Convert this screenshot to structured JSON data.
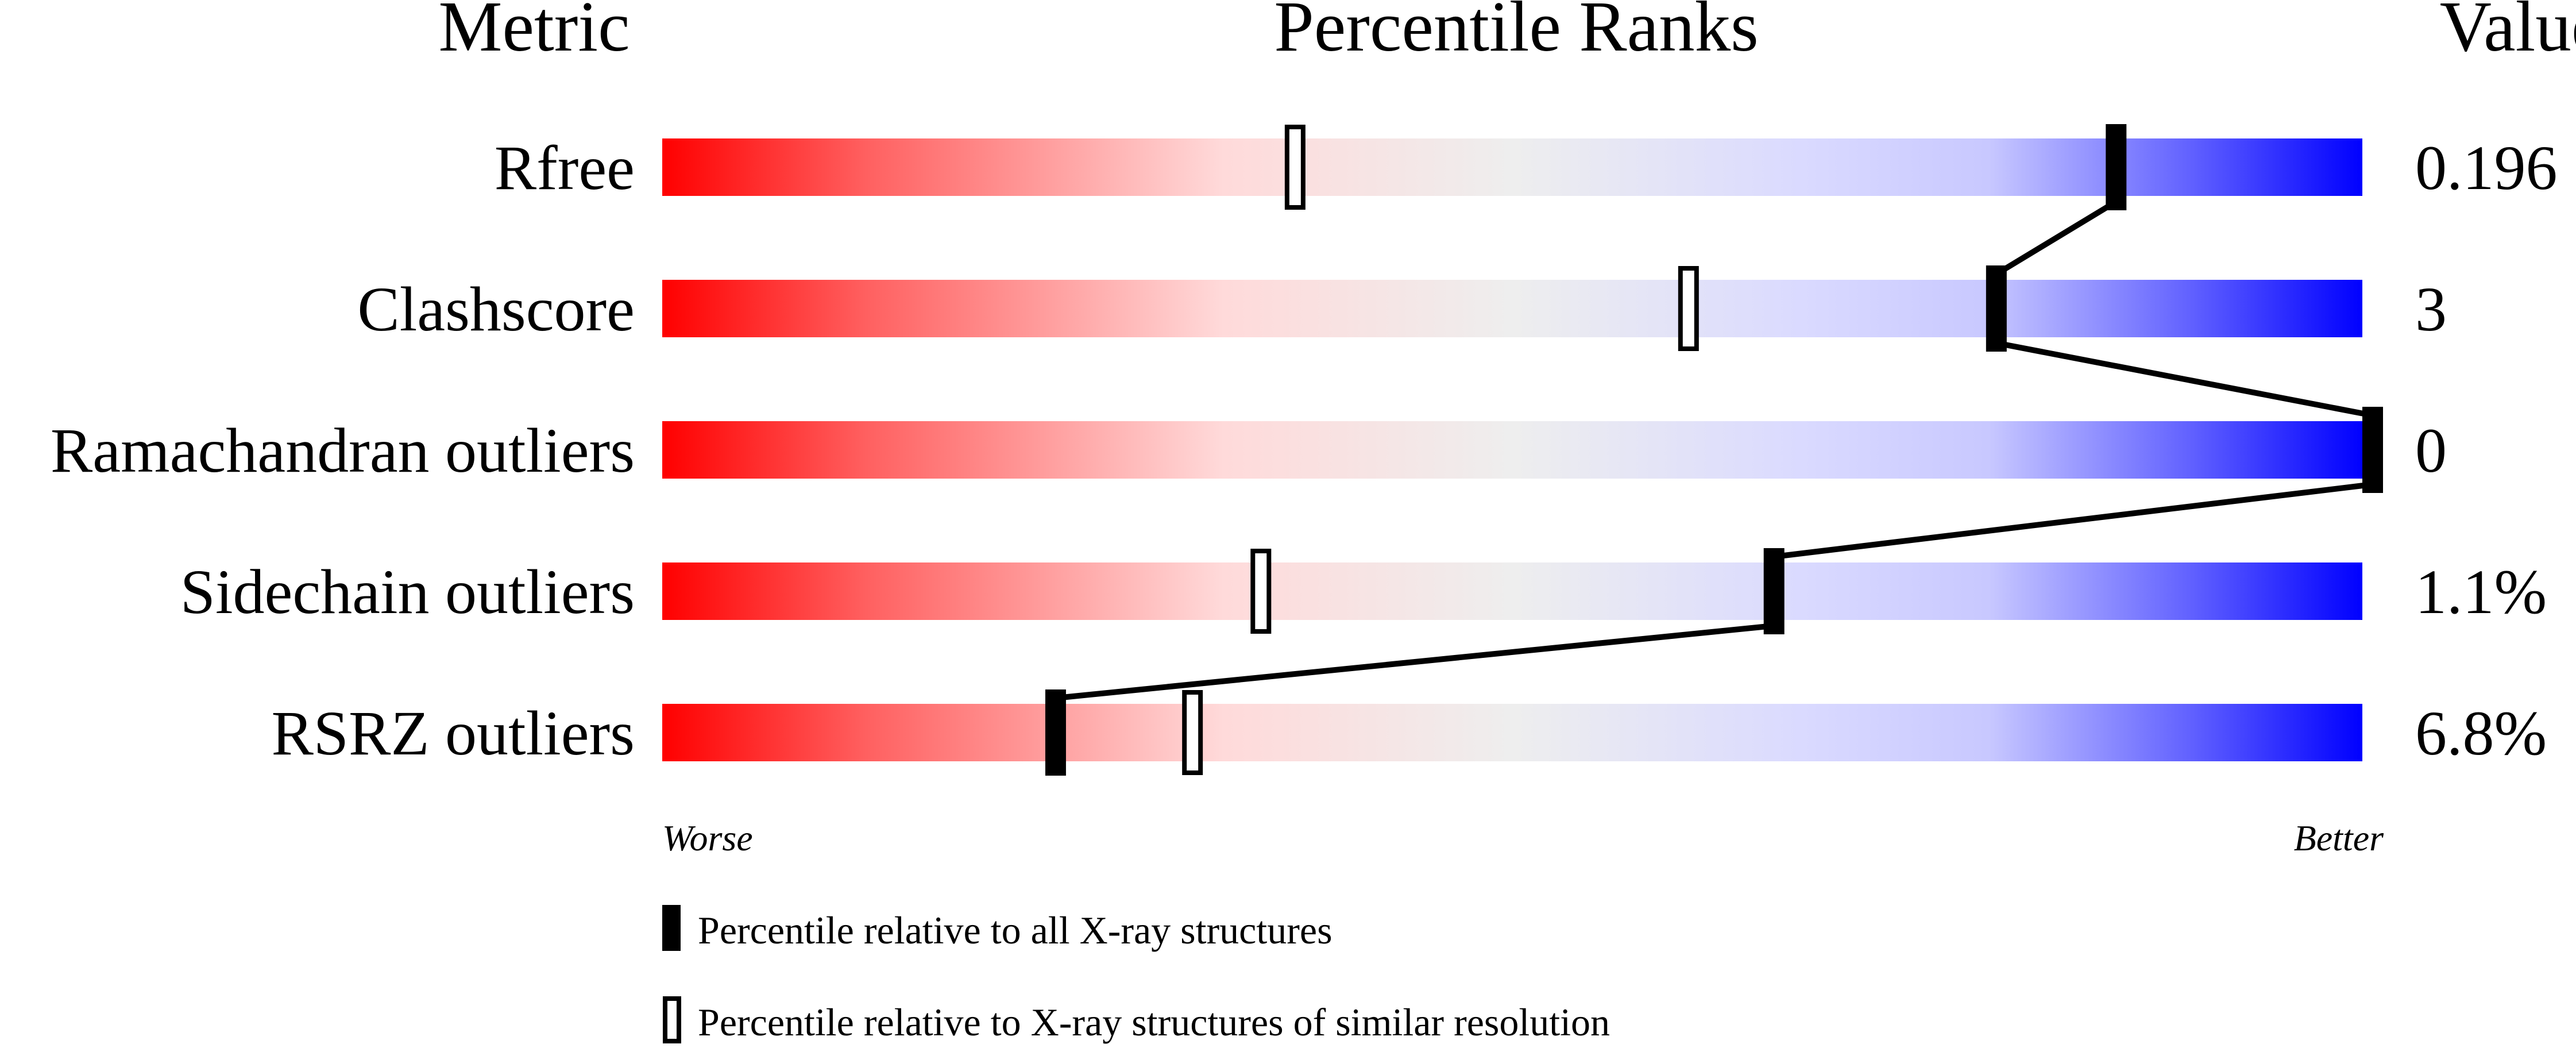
{
  "chart_data": {
    "type": "bar",
    "headers": {
      "metric": "Metric",
      "percentile": "Percentile Ranks",
      "value": "Value"
    },
    "xlim": [
      0,
      100
    ],
    "axis_left_label": "Worse",
    "axis_right_label": "Better",
    "gradient_colors": {
      "worse": "#ff0000",
      "middle": "#eeeeee",
      "better": "#0000ff"
    },
    "metrics": [
      {
        "name": "Rfree",
        "value": "0.196",
        "percentile_all": 85,
        "percentile_similar": 37
      },
      {
        "name": "Clashscore",
        "value": "3",
        "percentile_all": 78,
        "percentile_similar": 60
      },
      {
        "name": "Ramachandran outliers",
        "value": "0",
        "percentile_all": 100,
        "percentile_similar": 100
      },
      {
        "name": "Sidechain outliers",
        "value": "1.1%",
        "percentile_all": 65,
        "percentile_similar": 35
      },
      {
        "name": "RSRZ outliers",
        "value": "6.8%",
        "percentile_all": 23,
        "percentile_similar": 31
      }
    ],
    "legend": [
      {
        "marker": "filled",
        "label": "Percentile relative to all X-ray structures"
      },
      {
        "marker": "open",
        "label": "Percentile relative to X-ray structures of similar resolution"
      }
    ]
  }
}
